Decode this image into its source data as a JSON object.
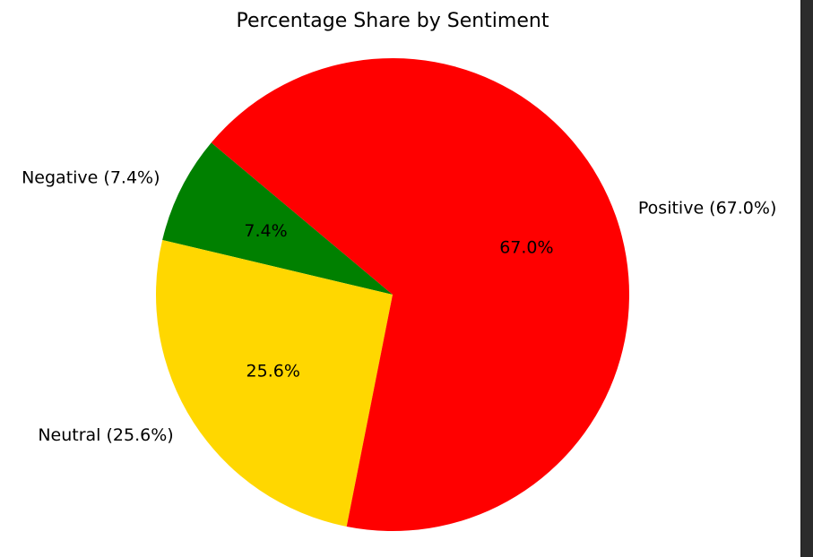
{
  "chart_data": {
    "type": "pie",
    "title": "Percentage Share by Sentiment",
    "start_angle_deg": 140,
    "direction": "counterclockwise",
    "slices": [
      {
        "label": "Negative",
        "value": 7.4,
        "outer_label": "Negative (7.4%)",
        "inner_label": "7.4%",
        "color": "#008000"
      },
      {
        "label": "Neutral",
        "value": 25.6,
        "outer_label": "Neutral (25.6%)",
        "inner_label": "25.6%",
        "color": "#FFD700"
      },
      {
        "label": "Positive",
        "value": 67.0,
        "outer_label": "Positive (67.0%)",
        "inner_label": "67.0%",
        "color": "#FF0000"
      }
    ]
  }
}
